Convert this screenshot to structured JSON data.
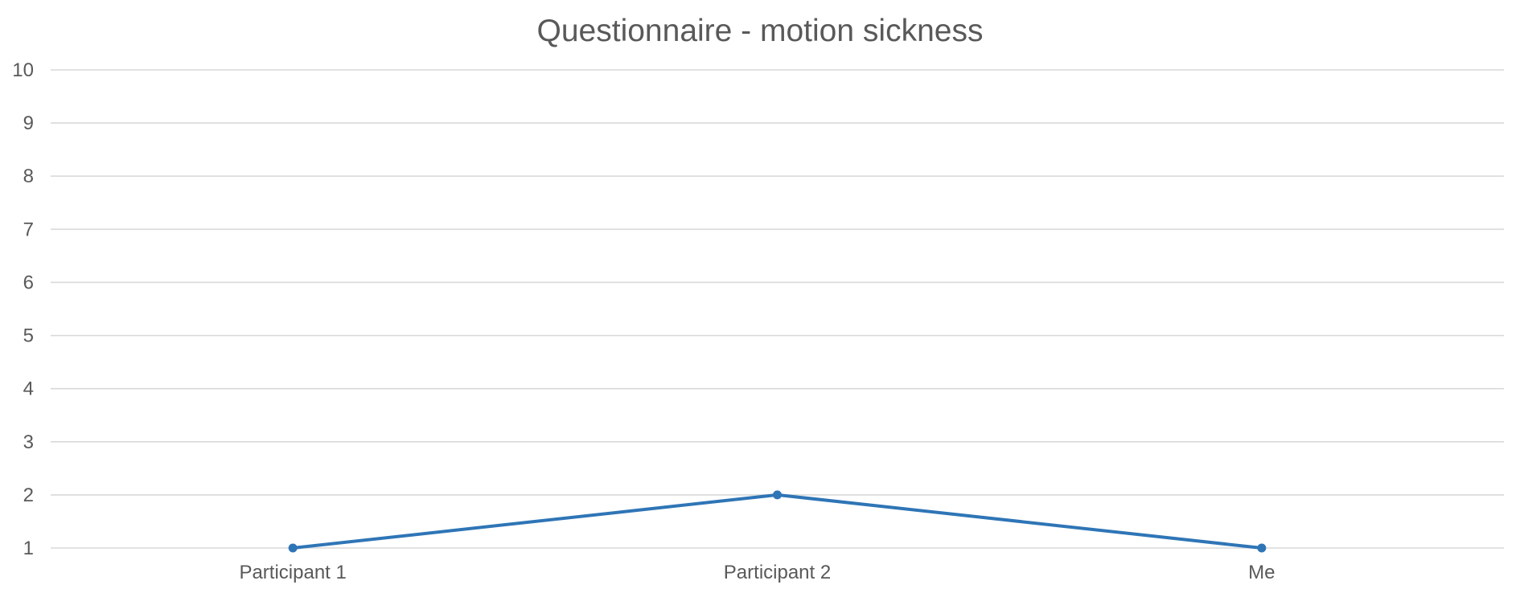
{
  "chart_data": {
    "type": "line",
    "title": "Questionnaire - motion sickness",
    "xlabel": "",
    "ylabel": "",
    "categories": [
      "Participant 1",
      "Participant 2",
      "Me"
    ],
    "series": [
      {
        "values": [
          1,
          2,
          1
        ]
      }
    ],
    "ylim": [
      1,
      10
    ],
    "yticks": [
      1,
      2,
      3,
      4,
      5,
      6,
      7,
      8,
      9,
      10
    ],
    "grid": true,
    "legend": "none",
    "markers": true
  },
  "colors": {
    "series": "#2e75b6",
    "grid": "#d9d9d9",
    "text": "#595959"
  }
}
